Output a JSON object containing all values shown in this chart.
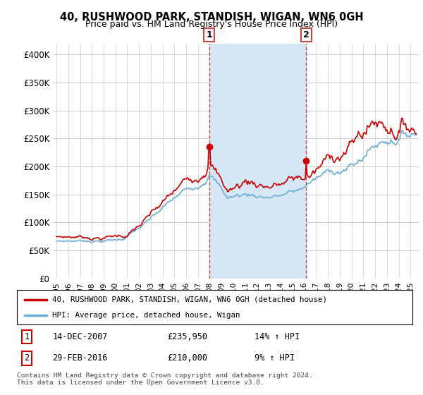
{
  "title": "40, RUSHWOOD PARK, STANDISH, WIGAN, WN6 0GH",
  "subtitle": "Price paid vs. HM Land Registry's House Price Index (HPI)",
  "legend_line1": "40, RUSHWOOD PARK, STANDISH, WIGAN, WN6 0GH (detached house)",
  "legend_line2": "HPI: Average price, detached house, Wigan",
  "sale1_date": "14-DEC-2007",
  "sale1_price": "£235,950",
  "sale1_hpi": "14% ↑ HPI",
  "sale2_date": "29-FEB-2016",
  "sale2_price": "£210,000",
  "sale2_hpi": "9% ↑ HPI",
  "footnote": "Contains HM Land Registry data © Crown copyright and database right 2024.\nThis data is licensed under the Open Government Licence v3.0.",
  "hpi_color": "#6baed6",
  "sale_color": "#cc0000",
  "vline_color": "#cc4444",
  "shaded_color": "#d6e8f5",
  "ylim": [
    0,
    420000
  ],
  "yticks": [
    0,
    50000,
    100000,
    150000,
    200000,
    250000,
    300000,
    350000,
    400000
  ],
  "ytick_labels": [
    "£0",
    "£50K",
    "£100K",
    "£150K",
    "£200K",
    "£250K",
    "£300K",
    "£350K",
    "£400K"
  ],
  "sale1_x": 2007.958,
  "sale2_x": 2016.167,
  "sale1_y": 235950,
  "sale2_y": 210000,
  "xlim_left": 1994.7,
  "xlim_right": 2025.7
}
